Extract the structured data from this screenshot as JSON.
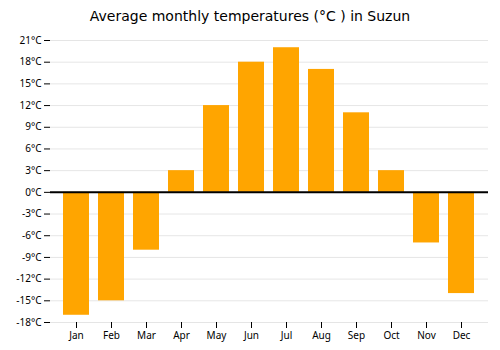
{
  "chart_data": {
    "type": "bar",
    "title": "Average monthly temperatures (°C ) in Suzun",
    "categories": [
      "Jan",
      "Feb",
      "Mar",
      "Apr",
      "May",
      "Jun",
      "Jul",
      "Aug",
      "Sep",
      "Oct",
      "Nov",
      "Dec"
    ],
    "values": [
      -17,
      -15,
      -8,
      3,
      12,
      18,
      20,
      17,
      11,
      3,
      -7,
      -14
    ],
    "color": "#FFA500",
    "ylim": [
      -18,
      21
    ],
    "yticks": [
      {
        "value": -18,
        "label": "-18°C"
      },
      {
        "value": -15,
        "label": "-15°C"
      },
      {
        "value": -12,
        "label": "-12°C"
      },
      {
        "value": -9,
        "label": "-9°C"
      },
      {
        "value": -6,
        "label": "-6°C"
      },
      {
        "value": -3,
        "label": "-3°C"
      },
      {
        "value": 0,
        "label": "0°C"
      },
      {
        "value": 3,
        "label": "3°C"
      },
      {
        "value": 6,
        "label": "6°C"
      },
      {
        "value": 9,
        "label": "9°C"
      },
      {
        "value": 12,
        "label": "12°C"
      },
      {
        "value": 15,
        "label": "15°C"
      },
      {
        "value": 18,
        "label": "18°C"
      },
      {
        "value": 21,
        "label": "21°C"
      }
    ],
    "grid": true
  }
}
